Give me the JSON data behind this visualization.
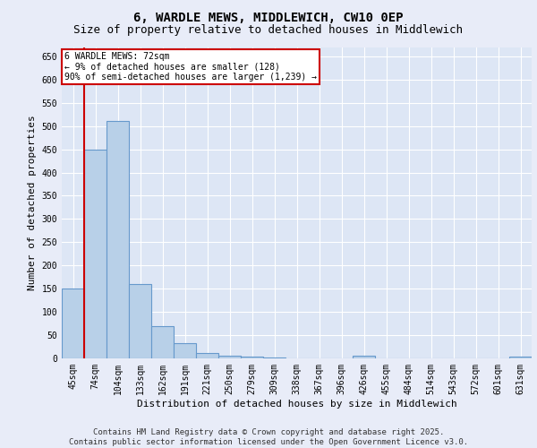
{
  "title_line1": "6, WARDLE MEWS, MIDDLEWICH, CW10 0EP",
  "title_line2": "Size of property relative to detached houses in Middlewich",
  "xlabel": "Distribution of detached houses by size in Middlewich",
  "ylabel": "Number of detached properties",
  "footer_line1": "Contains HM Land Registry data © Crown copyright and database right 2025.",
  "footer_line2": "Contains public sector information licensed under the Open Government Licence v3.0.",
  "annotation_line1": "6 WARDLE MEWS: 72sqm",
  "annotation_line2": "← 9% of detached houses are smaller (128)",
  "annotation_line3": "90% of semi-detached houses are larger (1,239) →",
  "categories": [
    "45sqm",
    "74sqm",
    "104sqm",
    "133sqm",
    "162sqm",
    "191sqm",
    "221sqm",
    "250sqm",
    "279sqm",
    "309sqm",
    "338sqm",
    "367sqm",
    "396sqm",
    "426sqm",
    "455sqm",
    "484sqm",
    "514sqm",
    "543sqm",
    "572sqm",
    "601sqm",
    "631sqm"
  ],
  "bar_values": [
    150,
    450,
    510,
    160,
    70,
    32,
    12,
    6,
    3,
    2,
    0,
    0,
    0,
    5,
    0,
    0,
    0,
    0,
    0,
    0,
    3
  ],
  "bar_color": "#b8d0e8",
  "bar_edge_color": "#6699cc",
  "red_line_x": 0.5,
  "ylim": [
    0,
    670
  ],
  "yticks": [
    0,
    50,
    100,
    150,
    200,
    250,
    300,
    350,
    400,
    450,
    500,
    550,
    600,
    650
  ],
  "bg_color": "#e8ecf8",
  "plot_bg_color": "#dde6f5",
  "grid_color": "#ffffff",
  "red_line_color": "#cc0000",
  "annotation_box_color": "#cc0000",
  "title_fontsize": 10,
  "subtitle_fontsize": 9,
  "tick_fontsize": 7,
  "label_fontsize": 8,
  "footer_fontsize": 6.5
}
